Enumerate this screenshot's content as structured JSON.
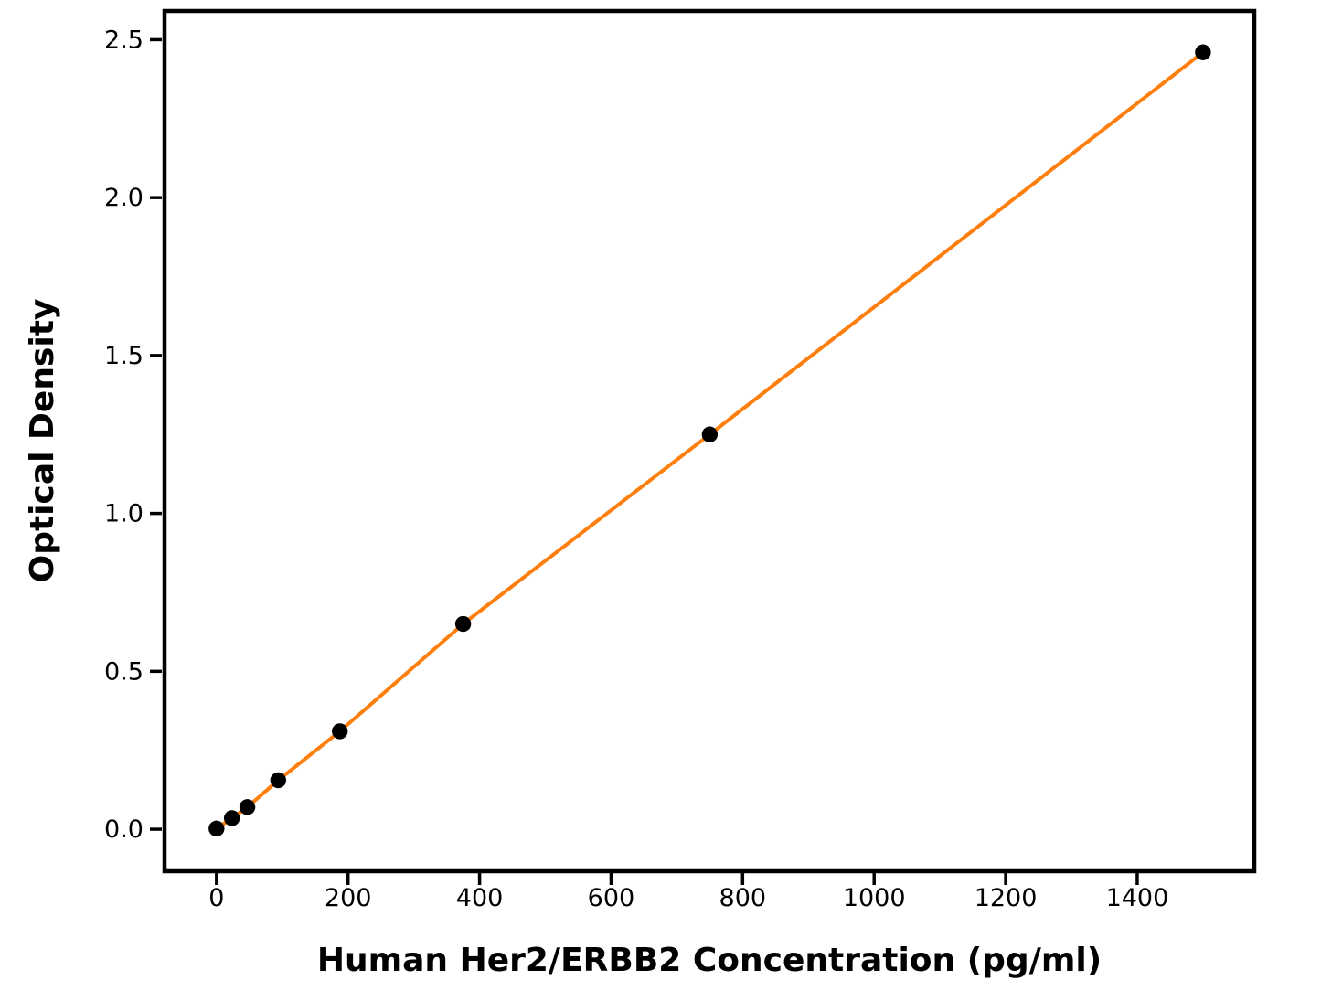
{
  "chart_data": {
    "type": "scatter",
    "title": "",
    "xlabel": "Human Her2/ERBB2 Concentration (pg/ml)",
    "ylabel": "Optical Density",
    "series": [
      {
        "x": [
          0,
          23.4,
          46.9,
          93.8,
          187.5,
          375,
          750,
          1500
        ],
        "y": [
          0.002,
          0.035,
          0.07,
          0.155,
          0.31,
          0.65,
          1.25,
          2.46
        ]
      }
    ],
    "xticks": [
      0,
      200,
      400,
      600,
      800,
      1000,
      1200,
      1400
    ],
    "ytick_labels": [
      "0.0",
      "0.5",
      "1.0",
      "1.5",
      "2.0",
      "2.5"
    ],
    "xlim": [
      -79,
      1578
    ],
    "ylim": [
      -0.133,
      2.591
    ],
    "grid": false,
    "legend": "none",
    "line_color": "#FF7F0E",
    "marker_color": "#000000",
    "axis_color": "#000000",
    "background_color": "#ffffff"
  }
}
